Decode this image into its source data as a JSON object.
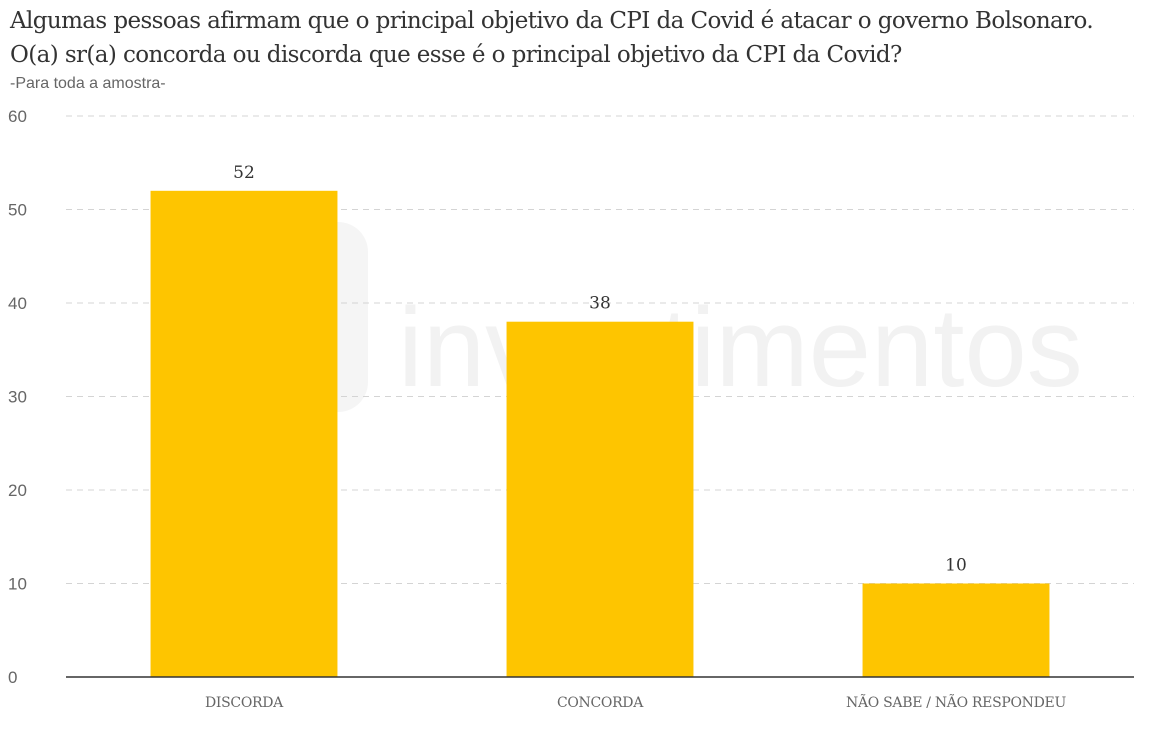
{
  "chart_data": {
    "type": "bar",
    "title": "Algumas pessoas afirmam que o principal objetivo da CPI da Covid é atacar o governo Bolsonaro. O(a) sr(a) concorda ou discorda que esse é o principal objetivo da CPI da Covid?",
    "subtitle": "-Para toda a amostra-",
    "categories": [
      "DISCORDA",
      "CONCORDA",
      "NÃO SABE / NÃO RESPONDEU"
    ],
    "values": [
      52,
      38,
      10
    ],
    "data_labels": [
      "52",
      "38",
      "10"
    ],
    "ylim": [
      0,
      60
    ],
    "yticks": [
      0,
      10,
      20,
      30,
      40,
      50,
      60
    ],
    "xlabel": "",
    "ylabel": "",
    "grid": true,
    "bar_color": "#fec500",
    "watermark": "investimentos"
  }
}
